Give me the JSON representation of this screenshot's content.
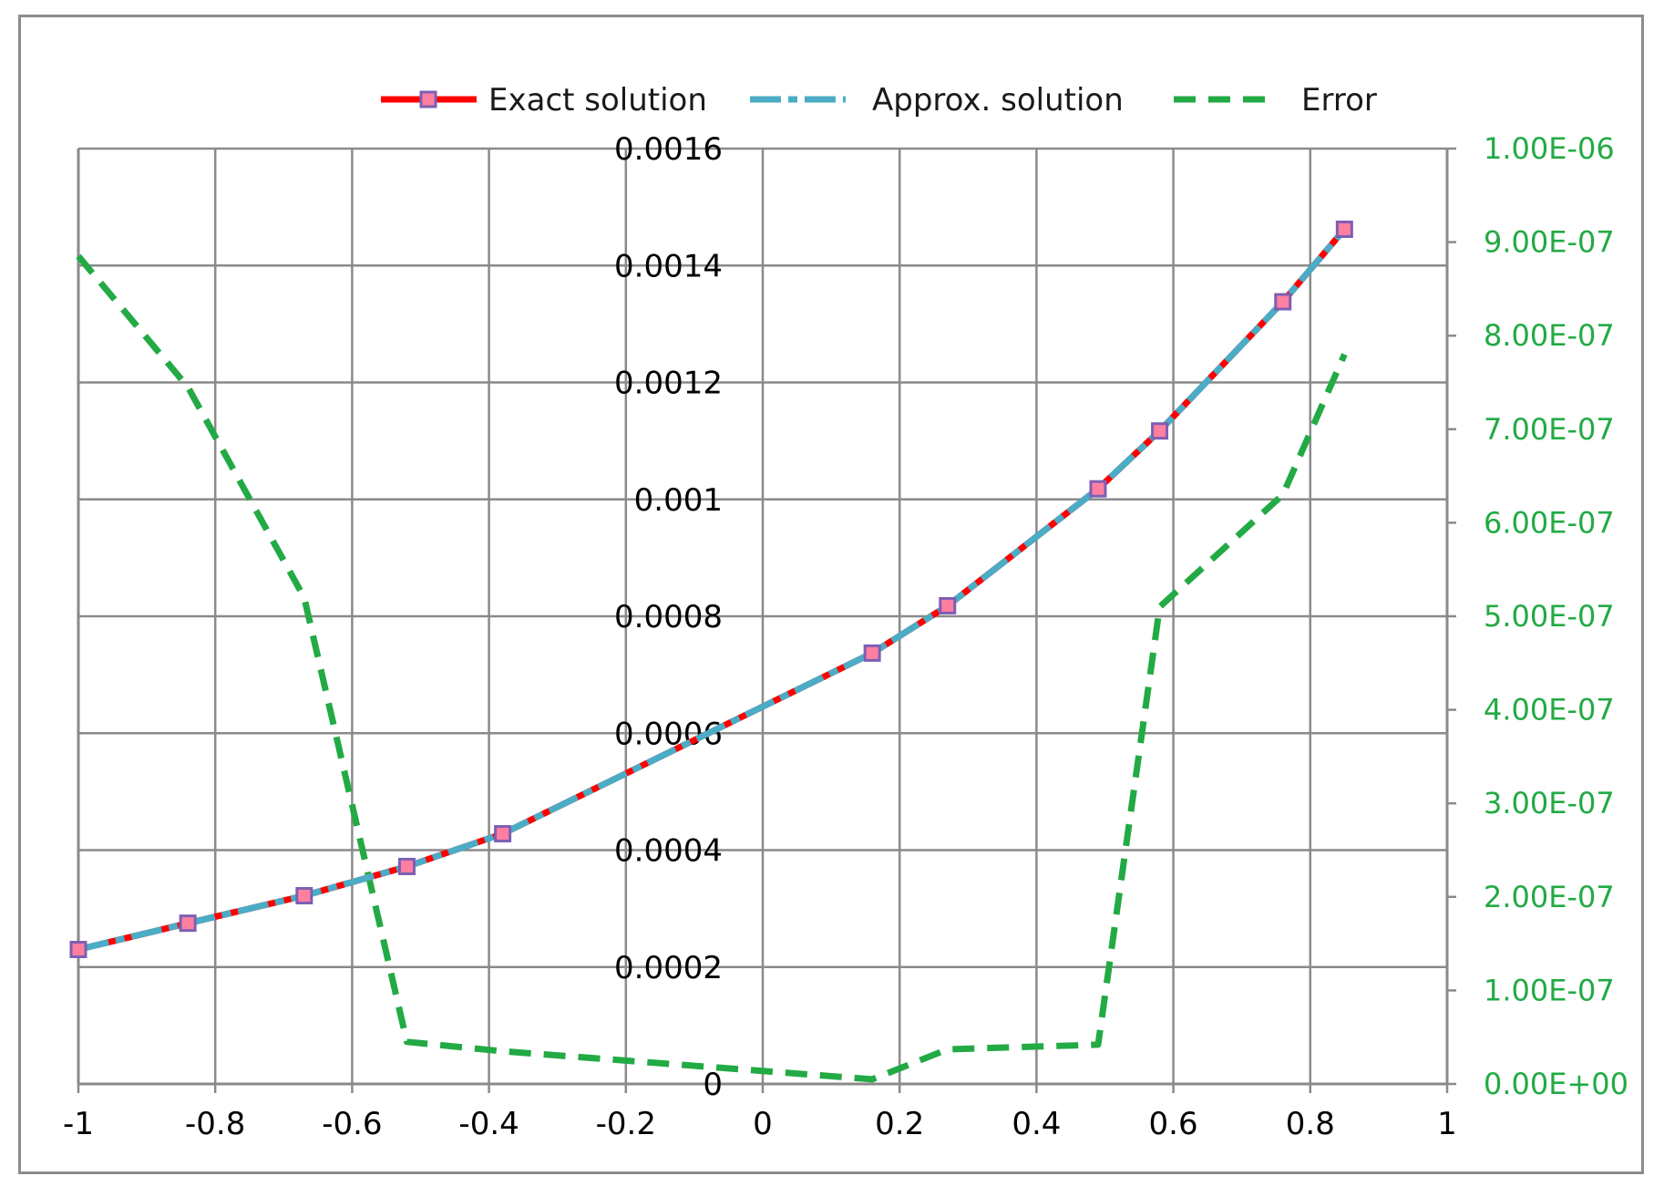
{
  "chart_data": {
    "type": "line",
    "title": "",
    "xlabel": "",
    "ylabel": "",
    "y2label": "",
    "xlim": [
      -1,
      1
    ],
    "ylim": [
      0,
      0.0016
    ],
    "y2lim": [
      0,
      1e-06
    ],
    "grid": true,
    "legend_position": "top",
    "x_ticks": [
      "-1",
      "-0.8",
      "-0.6",
      "-0.4",
      "-0.2",
      "0",
      "0.2",
      "0.4",
      "0.6",
      "0.8",
      "1"
    ],
    "x_tick_values": [
      -1,
      -0.8,
      -0.6,
      -0.4,
      -0.2,
      0,
      0.2,
      0.4,
      0.6,
      0.8,
      1
    ],
    "y_ticks": [
      "0",
      "0.0002",
      "0.0004",
      "0.0006",
      "0.0008",
      "0.001",
      "0.0012",
      "0.0014",
      "0.0016"
    ],
    "y_tick_values": [
      0,
      0.0002,
      0.0004,
      0.0006,
      0.0008,
      0.001,
      0.0012,
      0.0014,
      0.0016
    ],
    "y2_ticks": [
      "0.00E+00",
      "1.00E-07",
      "2.00E-07",
      "3.00E-07",
      "4.00E-07",
      "5.00E-07",
      "6.00E-07",
      "7.00E-07",
      "8.00E-07",
      "9.00E-07",
      "1.00E-06"
    ],
    "y2_tick_values": [
      0,
      1e-07,
      2e-07,
      3e-07,
      4e-07,
      5e-07,
      6e-07,
      7e-07,
      8e-07,
      9e-07,
      1e-06
    ],
    "series": [
      {
        "name": "Exact solution",
        "axis": "left",
        "color": "#ff0000",
        "marker_color": "#7d5fb4",
        "style": "solid-marker",
        "x": [
          -1,
          -0.84,
          -0.67,
          -0.52,
          -0.38,
          0.16,
          0.27,
          0.49,
          0.58,
          0.76,
          0.85
        ],
        "y": [
          0.00023,
          0.000275,
          0.000322,
          0.000372,
          0.000428,
          0.000737,
          0.000818,
          0.001018,
          0.001117,
          0.001338,
          0.001462
        ]
      },
      {
        "name": "Approx. solution",
        "axis": "left",
        "color": "#4bacc6",
        "style": "dash-dot",
        "x": [
          -1,
          -0.84,
          -0.67,
          -0.52,
          -0.38,
          0.16,
          0.27,
          0.49,
          0.58,
          0.76,
          0.85
        ],
        "y": [
          0.00023,
          0.000275,
          0.000322,
          0.000372,
          0.000428,
          0.000737,
          0.000818,
          0.001018,
          0.001117,
          0.001338,
          0.001462
        ]
      },
      {
        "name": "Error",
        "axis": "right",
        "color": "#22aa44",
        "style": "dash",
        "x": [
          -1,
          -0.84,
          -0.67,
          -0.52,
          -0.38,
          0.16,
          0.27,
          0.49,
          0.58,
          0.76,
          0.85
        ],
        "y": [
          8.85e-07,
          7.45e-07,
          5.2e-07,
          4.5e-08,
          3.5e-08,
          5e-09,
          3.7e-08,
          4.2e-08,
          5.1e-07,
          6.3e-07,
          7.8e-07
        ]
      }
    ]
  }
}
